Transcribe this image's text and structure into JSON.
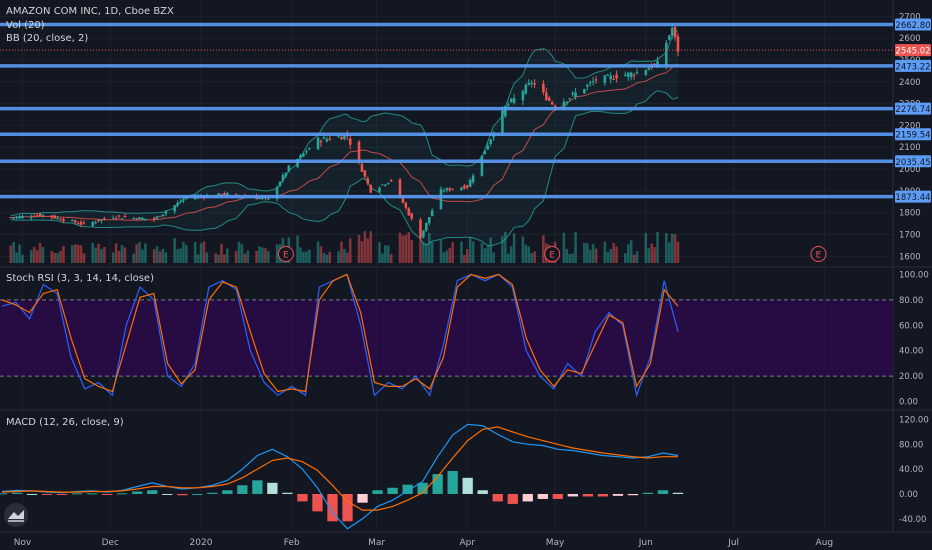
{
  "legend": {
    "symbol": "AMAZON COM INC, 1D, Cboe BZX",
    "volume": "Vol (20)",
    "bb": "BB (20, close, 2)",
    "stoch": "Stoch RSI (3, 3, 14, 14, close)",
    "macd": "MACD (12, 26, close, 9)"
  },
  "colors": {
    "background": "#131722",
    "up": "#26a69a",
    "down": "#ef5350",
    "level_line": "#5b9cf6",
    "bb_band": "#26a69a",
    "bb_basis": "#ef5350",
    "stoch_k": "#2962ff",
    "stoch_d": "#ff6d00",
    "stoch_fill": "#2a0a48",
    "macd_line": "#2196f3",
    "signal_line": "#ff6d00",
    "hist_up_strong": "#26a69a",
    "hist_up_weak": "#b2dfdb",
    "hist_down_strong": "#ef5350",
    "hist_down_weak": "#ffcdd2"
  },
  "chart_data": [
    {
      "type": "candlestick",
      "title": "AMAZON COM INC, 1D, Cboe BZX",
      "x_ticks": [
        "Nov",
        "Dec",
        "2020",
        "Feb",
        "Mar",
        "Apr",
        "May",
        "Jun",
        "Jul",
        "Aug"
      ],
      "y_ticks": [
        1600,
        1700,
        1800,
        1900,
        2000,
        2100,
        2200,
        2300,
        2400,
        2500,
        2600,
        2700
      ],
      "ylim": [
        1560,
        2720
      ],
      "horizontal_levels": [
        2662.8,
        2473.22,
        2276.74,
        2159.54,
        2035.45,
        1873.44
      ],
      "horizontal_level_labels": [
        "2662.80",
        "2473.22",
        "2276.74",
        "2159.54",
        "2035.45",
        "1873.44"
      ],
      "last_price": 2545.02,
      "last_price_label": "2545.02",
      "earnings_markers": [
        "E",
        "E",
        "E"
      ],
      "close_points": [
        {
          "x": "2019-10-28",
          "y": 1778
        },
        {
          "x": "2019-11-08",
          "y": 1790
        },
        {
          "x": "2019-11-22",
          "y": 1746
        },
        {
          "x": "2019-12-02",
          "y": 1782
        },
        {
          "x": "2019-12-16",
          "y": 1770
        },
        {
          "x": "2019-12-27",
          "y": 1870
        },
        {
          "x": "2020-01-10",
          "y": 1885
        },
        {
          "x": "2020-01-24",
          "y": 1860
        },
        {
          "x": "2020-01-31",
          "y": 2008
        },
        {
          "x": "2020-02-10",
          "y": 2133
        },
        {
          "x": "2020-02-20",
          "y": 2153
        },
        {
          "x": "2020-02-28",
          "y": 1900
        },
        {
          "x": "2020-03-06",
          "y": 1950
        },
        {
          "x": "2020-03-16",
          "y": 1690
        },
        {
          "x": "2020-03-23",
          "y": 1902
        },
        {
          "x": "2020-04-01",
          "y": 1920
        },
        {
          "x": "2020-04-14",
          "y": 2283
        },
        {
          "x": "2020-04-23",
          "y": 2399
        },
        {
          "x": "2020-05-01",
          "y": 2286
        },
        {
          "x": "2020-05-15",
          "y": 2409
        },
        {
          "x": "2020-05-29",
          "y": 2442
        },
        {
          "x": "2020-06-05",
          "y": 2483
        },
        {
          "x": "2020-06-10",
          "y": 2647
        },
        {
          "x": "2020-06-12",
          "y": 2545
        }
      ]
    },
    {
      "type": "line",
      "title": "Stoch RSI (3, 3, 14, 14, close)",
      "y_ticks": [
        0,
        20,
        40,
        60,
        80,
        100
      ],
      "y_tick_labels": [
        "0.00",
        "20.00",
        "40.00",
        "60.00",
        "80.00",
        "100.00"
      ],
      "ylim": [
        -5,
        105
      ],
      "band": [
        20,
        80
      ],
      "series": [
        {
          "key": "k",
          "values": [
            75,
            78,
            65,
            92,
            85,
            35,
            10,
            15,
            5,
            60,
            90,
            80,
            20,
            12,
            30,
            90,
            95,
            88,
            40,
            15,
            5,
            12,
            5,
            90,
            95,
            100,
            60,
            5,
            15,
            10,
            20,
            5,
            45,
            95,
            100,
            95,
            100,
            90,
            40,
            20,
            10,
            30,
            20,
            55,
            70,
            60,
            5,
            35,
            95,
            55
          ]
        },
        {
          "key": "d",
          "values": [
            80,
            76,
            70,
            85,
            88,
            50,
            18,
            12,
            8,
            45,
            82,
            85,
            30,
            14,
            25,
            80,
            94,
            90,
            55,
            22,
            8,
            10,
            8,
            80,
            95,
            100,
            70,
            15,
            12,
            12,
            18,
            10,
            35,
            90,
            100,
            97,
            100,
            92,
            50,
            25,
            12,
            25,
            22,
            45,
            68,
            62,
            12,
            30,
            88,
            75
          ]
        }
      ]
    },
    {
      "type": "bar+line",
      "title": "MACD (12, 26, close, 9)",
      "y_ticks": [
        -40,
        0,
        40,
        80,
        120
      ],
      "y_tick_labels": [
        "-40.00",
        "0.00",
        "40.00",
        "80.00",
        "120.00"
      ],
      "ylim": [
        -58,
        132
      ],
      "series": [
        {
          "key": "macd",
          "values": [
            4,
            6,
            5,
            3,
            2,
            4,
            5,
            3,
            6,
            12,
            18,
            12,
            8,
            10,
            14,
            22,
            40,
            62,
            72,
            60,
            40,
            10,
            -30,
            -56,
            -40,
            -20,
            -10,
            5,
            20,
            60,
            95,
            112,
            110,
            96,
            84,
            80,
            78,
            72,
            70,
            66,
            62,
            60,
            58,
            60,
            66,
            62
          ]
        },
        {
          "key": "signal",
          "values": [
            3,
            4,
            5,
            4,
            3,
            3,
            4,
            4,
            5,
            8,
            12,
            12,
            10,
            10,
            12,
            16,
            26,
            40,
            54,
            58,
            52,
            38,
            14,
            -12,
            -26,
            -26,
            -20,
            -10,
            2,
            28,
            58,
            86,
            104,
            108,
            100,
            92,
            86,
            80,
            74,
            70,
            66,
            63,
            60,
            58,
            60,
            60
          ]
        }
      ],
      "histogram": [
        1,
        2,
        0,
        -1,
        -1,
        1,
        1,
        -1,
        1,
        4,
        6,
        0,
        -2,
        0,
        2,
        6,
        14,
        22,
        18,
        2,
        -12,
        -28,
        -44,
        -44,
        -14,
        6,
        10,
        15,
        18,
        32,
        37,
        26,
        6,
        -12,
        -16,
        -12,
        -8,
        -8,
        -4,
        -4,
        -4,
        -3,
        -2,
        2,
        6,
        2
      ]
    }
  ]
}
